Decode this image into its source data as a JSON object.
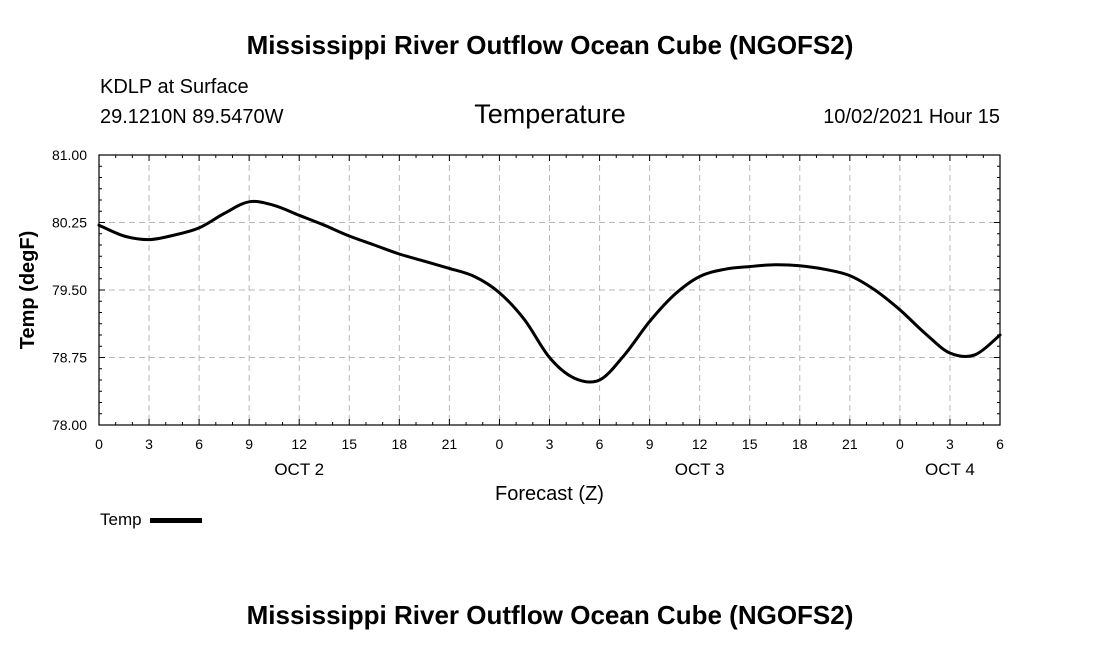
{
  "header": {
    "main_title": "Mississippi River Outflow Ocean Cube (NGOFS2)",
    "station": "KDLP at Surface",
    "coords": "29.1210N  89.5470W",
    "variable": "Temperature",
    "datetime": "10/02/2021 Hour 15",
    "footer_title": "Mississippi River Outflow Ocean Cube (NGOFS2)"
  },
  "chart_data": {
    "type": "line",
    "title": "Temperature",
    "xlabel": "Forecast (Z)",
    "ylabel": "Temp (degF)",
    "ylim": [
      78.0,
      81.0
    ],
    "yticks": [
      "81.00",
      "80.25",
      "79.50",
      "78.75",
      "78.00"
    ],
    "ytick_values": [
      81.0,
      80.25,
      79.5,
      78.75,
      78.0
    ],
    "xlim_hours": [
      0,
      54
    ],
    "xtick_labels": [
      "0",
      "3",
      "6",
      "9",
      "12",
      "15",
      "18",
      "21",
      "0",
      "3",
      "6",
      "9",
      "12",
      "15",
      "18",
      "21",
      "0",
      "3",
      "6"
    ],
    "day_labels": [
      {
        "label": "OCT 2",
        "hour": 12
      },
      {
        "label": "OCT 3",
        "hour": 36
      },
      {
        "label": "OCT 4",
        "hour": 51
      }
    ],
    "grid": true,
    "legend": "bottom-left",
    "series": [
      {
        "name": "Temp",
        "color": "#000000",
        "x_hours": [
          0,
          1.5,
          3,
          4.5,
          6,
          7.5,
          9,
          10.5,
          12,
          13.5,
          15,
          16.5,
          18,
          19.5,
          21,
          22.5,
          24,
          25.5,
          27,
          28.5,
          30,
          31.5,
          33,
          34.5,
          36,
          37.5,
          39,
          40.5,
          42,
          43.5,
          45,
          46.5,
          48,
          49.5,
          51,
          52.5,
          54
        ],
        "values": [
          80.22,
          80.1,
          80.06,
          80.11,
          80.19,
          80.35,
          80.48,
          80.44,
          80.33,
          80.22,
          80.1,
          80.0,
          79.9,
          79.82,
          79.74,
          79.65,
          79.47,
          79.17,
          78.75,
          78.52,
          78.5,
          78.78,
          79.15,
          79.45,
          79.65,
          79.73,
          79.76,
          79.78,
          79.77,
          79.73,
          79.66,
          79.5,
          79.28,
          79.02,
          78.8,
          78.78,
          79.0
        ]
      }
    ]
  }
}
